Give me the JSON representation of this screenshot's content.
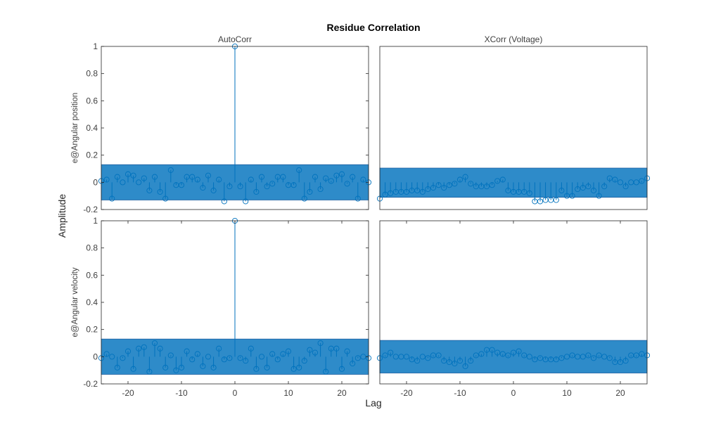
{
  "figure": {
    "title": "Residue Correlation",
    "xlabel": "Lag",
    "ylabel": "Amplitude"
  },
  "colors": {
    "stem": "#0072bd",
    "band_fill": "#0072bd",
    "band_edge": "#1d5fa0",
    "axis": "#262626",
    "tick_text": "#404040",
    "label_text": "#262626",
    "title_text": "#000000"
  },
  "chart_data": [
    {
      "id": "ax11",
      "type": "stem",
      "title": "AutoCorr",
      "ylabel": "e@Angular position",
      "xlim": [
        -25,
        25
      ],
      "ylim": [
        -0.2,
        1
      ],
      "yticks": [
        -0.2,
        0,
        0.2,
        0.4,
        0.6,
        0.8,
        1
      ],
      "ytick_labels": [
        "-0.2",
        "0",
        "0.2",
        "0.4",
        "0.6",
        "0.8",
        "1"
      ],
      "xticks": [],
      "xtick_labels": [],
      "confidence_band": [
        -0.13,
        0.13
      ],
      "x": [
        -25,
        -24,
        -23,
        -22,
        -21,
        -20,
        -19,
        -18,
        -17,
        -16,
        -15,
        -14,
        -13,
        -12,
        -11,
        -10,
        -9,
        -8,
        -7,
        -6,
        -5,
        -4,
        -3,
        -2,
        -1,
        0,
        1,
        2,
        3,
        4,
        5,
        6,
        7,
        8,
        9,
        10,
        11,
        12,
        13,
        14,
        15,
        16,
        17,
        18,
        19,
        20,
        21,
        22,
        23,
        24,
        25
      ],
      "values": [
        0.01,
        0.02,
        -0.12,
        0.04,
        0.0,
        0.06,
        0.05,
        0.0,
        0.03,
        -0.06,
        0.04,
        -0.07,
        -0.12,
        0.09,
        -0.02,
        -0.02,
        0.04,
        0.04,
        0.02,
        -0.04,
        0.05,
        -0.06,
        0.02,
        -0.14,
        -0.03,
        1.0,
        -0.03,
        -0.14,
        0.02,
        -0.07,
        0.04,
        -0.03,
        -0.01,
        0.04,
        0.04,
        -0.02,
        -0.02,
        0.09,
        -0.12,
        -0.07,
        0.04,
        -0.05,
        0.03,
        0.01,
        0.05,
        0.06,
        -0.01,
        0.04,
        -0.12,
        0.02,
        0.0
      ]
    },
    {
      "id": "ax12",
      "type": "stem",
      "title": "XCorr (Voltage)",
      "ylabel": "",
      "xlim": [
        -25,
        25
      ],
      "ylim": [
        -0.2,
        1
      ],
      "yticks": [],
      "ytick_labels": [],
      "xticks": [],
      "xtick_labels": [],
      "confidence_band": [
        -0.11,
        0.105
      ],
      "x": [
        -25,
        -24,
        -23,
        -22,
        -21,
        -20,
        -19,
        -18,
        -17,
        -16,
        -15,
        -14,
        -13,
        -12,
        -11,
        -10,
        -9,
        -8,
        -7,
        -6,
        -5,
        -4,
        -3,
        -2,
        -1,
        0,
        1,
        2,
        3,
        4,
        5,
        6,
        7,
        8,
        9,
        10,
        11,
        12,
        13,
        14,
        15,
        16,
        17,
        18,
        19,
        20,
        21,
        22,
        23,
        24,
        25
      ],
      "values": [
        -0.12,
        -0.09,
        -0.08,
        -0.07,
        -0.07,
        -0.07,
        -0.06,
        -0.06,
        -0.07,
        -0.05,
        -0.04,
        -0.02,
        -0.04,
        -0.02,
        -0.01,
        0.02,
        0.04,
        -0.01,
        -0.03,
        -0.03,
        -0.03,
        -0.02,
        0.01,
        0.02,
        -0.06,
        -0.07,
        -0.07,
        -0.07,
        -0.08,
        -0.14,
        -0.14,
        -0.13,
        -0.13,
        -0.13,
        -0.06,
        -0.1,
        -0.1,
        -0.05,
        -0.04,
        -0.03,
        -0.06,
        -0.1,
        -0.03,
        0.03,
        0.02,
        0.0,
        -0.03,
        0.0,
        0.0,
        0.01,
        0.03
      ]
    },
    {
      "id": "ax21",
      "type": "stem",
      "title": "",
      "ylabel": "e@Angular velocity",
      "xlim": [
        -25,
        25
      ],
      "ylim": [
        -0.2,
        1
      ],
      "yticks": [
        -0.2,
        0,
        0.2,
        0.4,
        0.6,
        0.8,
        1
      ],
      "ytick_labels": [
        "-0.2",
        "0",
        "0.2",
        "0.4",
        "0.6",
        "0.8",
        "1"
      ],
      "xticks": [
        -20,
        -10,
        0,
        10,
        20
      ],
      "xtick_labels": [
        "-20",
        "-10",
        "0",
        "10",
        "20"
      ],
      "confidence_band": [
        -0.13,
        0.13
      ],
      "x": [
        -25,
        -24,
        -23,
        -22,
        -21,
        -20,
        -19,
        -18,
        -17,
        -16,
        -15,
        -14,
        -13,
        -12,
        -11,
        -10,
        -9,
        -8,
        -7,
        -6,
        -5,
        -4,
        -3,
        -2,
        -1,
        0,
        1,
        2,
        3,
        4,
        5,
        6,
        7,
        8,
        9,
        10,
        11,
        12,
        13,
        14,
        15,
        16,
        17,
        18,
        19,
        20,
        21,
        22,
        23,
        24,
        25
      ],
      "values": [
        -0.01,
        0.02,
        0.0,
        -0.08,
        -0.01,
        0.04,
        -0.09,
        0.06,
        0.07,
        -0.11,
        0.1,
        0.06,
        -0.08,
        0.01,
        -0.1,
        -0.08,
        0.04,
        -0.02,
        0.02,
        -0.07,
        0.0,
        -0.08,
        0.06,
        -0.02,
        -0.01,
        1.0,
        -0.01,
        -0.03,
        0.06,
        -0.09,
        0.0,
        -0.08,
        0.02,
        -0.02,
        0.02,
        0.04,
        -0.09,
        -0.08,
        -0.03,
        0.05,
        0.03,
        0.1,
        -0.11,
        0.06,
        0.06,
        -0.09,
        0.04,
        -0.05,
        -0.01,
        0.0,
        -0.01
      ]
    },
    {
      "id": "ax22",
      "type": "stem",
      "title": "",
      "ylabel": "",
      "xlim": [
        -25,
        25
      ],
      "ylim": [
        -0.2,
        1
      ],
      "yticks": [],
      "ytick_labels": [],
      "xticks": [
        -20,
        -10,
        0,
        10,
        20
      ],
      "xtick_labels": [
        "-20",
        "-10",
        "0",
        "10",
        "20"
      ],
      "confidence_band": [
        -0.12,
        0.12
      ],
      "x": [
        -25,
        -24,
        -23,
        -22,
        -21,
        -20,
        -19,
        -18,
        -17,
        -16,
        -15,
        -14,
        -13,
        -12,
        -11,
        -10,
        -9,
        -8,
        -7,
        -6,
        -5,
        -4,
        -3,
        -2,
        -1,
        0,
        1,
        2,
        3,
        4,
        5,
        6,
        7,
        8,
        9,
        10,
        11,
        12,
        13,
        14,
        15,
        16,
        17,
        18,
        19,
        20,
        21,
        22,
        23,
        24,
        25
      ],
      "values": [
        -0.01,
        0.01,
        0.03,
        0.0,
        0.0,
        0.0,
        -0.02,
        -0.03,
        0.0,
        -0.01,
        0.01,
        0.01,
        -0.03,
        -0.04,
        -0.05,
        -0.03,
        -0.07,
        -0.03,
        0.01,
        0.02,
        0.05,
        0.05,
        0.03,
        0.02,
        0.01,
        0.03,
        0.04,
        0.01,
        0.0,
        -0.02,
        -0.01,
        -0.02,
        -0.02,
        -0.02,
        -0.01,
        0.0,
        0.01,
        0.0,
        0.0,
        0.01,
        -0.01,
        0.01,
        0.0,
        -0.01,
        -0.04,
        -0.04,
        -0.03,
        0.01,
        0.01,
        0.02,
        0.01
      ]
    }
  ]
}
